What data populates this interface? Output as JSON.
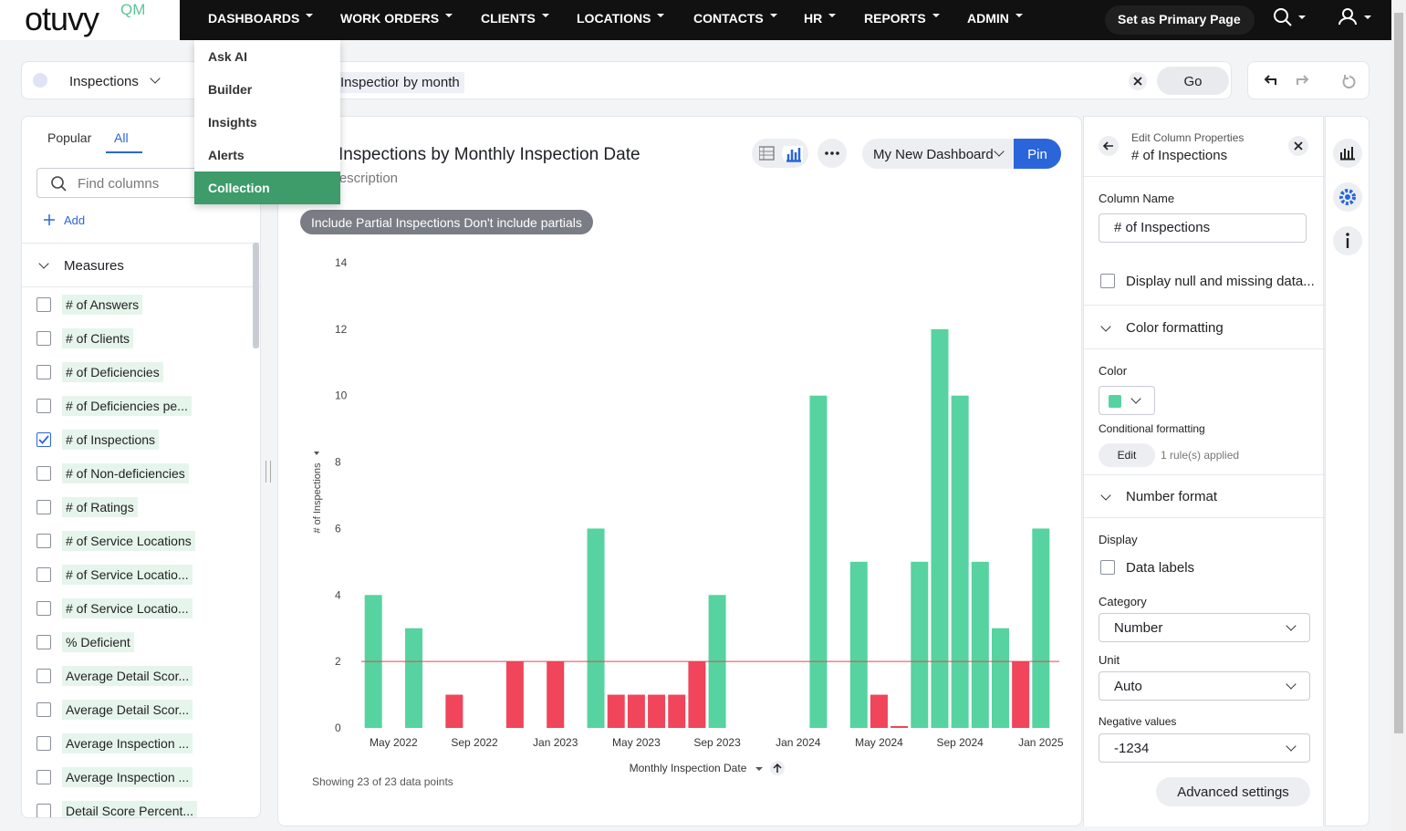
{
  "nav": {
    "logo": "otuvy",
    "logo_suffix": "QM",
    "items": [
      "DASHBOARDS",
      "WORK ORDERS",
      "CLIENTS",
      "LOCATIONS",
      "CONTACTS",
      "HR",
      "REPORTS",
      "ADMIN"
    ],
    "primary_button": "Set as Primary Page"
  },
  "menu": {
    "items": [
      {
        "label": "Ask AI",
        "selected": false
      },
      {
        "label": "Builder",
        "selected": false
      },
      {
        "label": "Insights",
        "selected": false
      },
      {
        "label": "Alerts",
        "selected": false
      },
      {
        "label": "Collection",
        "selected": true
      }
    ]
  },
  "search": {
    "source": "Inspections",
    "tokens": [
      "Inspections",
      "by month"
    ],
    "go": "Go"
  },
  "columns_panel": {
    "tabs": [
      {
        "label": "Popular",
        "active": false
      },
      {
        "label": "All",
        "active": true
      }
    ],
    "search_placeholder": "Find columns",
    "add": "Add",
    "section": "Measures",
    "columns": [
      {
        "name": "# of Answers",
        "checked": false
      },
      {
        "name": "# of Clients",
        "checked": false
      },
      {
        "name": "# of Deficiencies",
        "checked": false
      },
      {
        "name": "# of Deficiencies pe...",
        "checked": false
      },
      {
        "name": "# of Inspections",
        "checked": true
      },
      {
        "name": "# of Non-deficiencies",
        "checked": false
      },
      {
        "name": "# of Ratings",
        "checked": false
      },
      {
        "name": "# of Service Locations",
        "checked": false
      },
      {
        "name": "# of Service Locatio...",
        "checked": false
      },
      {
        "name": "# of Service Locatio...",
        "checked": false
      },
      {
        "name": "% Deficient",
        "checked": false
      },
      {
        "name": "Average Detail Scor...",
        "checked": false
      },
      {
        "name": "Average Detail Scor...",
        "checked": false
      },
      {
        "name": "Average Inspection ...",
        "checked": false
      },
      {
        "name": "Average Inspection ...",
        "checked": false
      },
      {
        "name": "Detail Score Percent...",
        "checked": false
      }
    ]
  },
  "chart_toolbar": {
    "dashboard": "My New Dashboard",
    "pin": "Pin",
    "filter_chip": "Include Partial Inspections Don't include partials",
    "footer": "Showing 23 of 23 data points"
  },
  "chart_data": {
    "type": "bar",
    "title": "Inspections by Monthly Inspection Date",
    "subtitle": "Description",
    "x_label": "Monthly Inspection Date",
    "y_label": "# of Inspections",
    "x": [
      "2022-04",
      "2022-06",
      "2022-08",
      "2022-11",
      "2023-01",
      "2023-03",
      "2023-04",
      "2023-05",
      "2023-06",
      "2023-07",
      "2023-08",
      "2023-09",
      "2024-02",
      "2024-04",
      "2024-05",
      "2024-06",
      "2024-07",
      "2024-08",
      "2024-09",
      "2024-10",
      "2024-11",
      "2024-12",
      "2025-01"
    ],
    "values": [
      4,
      3,
      1,
      2,
      2,
      6,
      1,
      1,
      1,
      1,
      2,
      4,
      10,
      5,
      1,
      0,
      5,
      12,
      10,
      5,
      3,
      2,
      6
    ],
    "color": "#56d3a0",
    "below_threshold_color": "#f0455a",
    "threshold": 2,
    "threshold_color": "#e0464f",
    "xlim": [
      "2022-03",
      "2025-02"
    ],
    "xticks": [
      {
        "value": "2022-05",
        "label": "May 2022"
      },
      {
        "value": "2022-09",
        "label": "Sep 2022"
      },
      {
        "value": "2023-01",
        "label": "Jan 2023"
      },
      {
        "value": "2023-05",
        "label": "May 2023"
      },
      {
        "value": "2023-09",
        "label": "Sep 2023"
      },
      {
        "value": "2024-01",
        "label": "Jan 2024"
      },
      {
        "value": "2024-05",
        "label": "May 2024"
      },
      {
        "value": "2024-09",
        "label": "Sep 2024"
      },
      {
        "value": "2025-01",
        "label": "Jan 2025"
      }
    ],
    "ylim": [
      0,
      14
    ],
    "yticks": [
      0,
      2,
      4,
      6,
      8,
      10,
      12,
      14
    ],
    "grid": false
  },
  "properties": {
    "header": "Edit Column Properties",
    "column": "# of Inspections",
    "column_name_label": "Column Name",
    "column_name_value": "# of Inspections",
    "null_option": "Display null and missing data...",
    "color_section": "Color formatting",
    "color_label": "Color",
    "conditional_label": "Conditional formatting",
    "edit": "Edit",
    "rules": "1 rule(s) applied",
    "number_section": "Number format",
    "display_label": "Display",
    "data_labels": "Data labels",
    "category_label": "Category",
    "category_value": "Number",
    "unit_label": "Unit",
    "unit_value": "Auto",
    "negative_label": "Negative values",
    "negative_value": "-1234",
    "advanced": "Advanced settings"
  }
}
